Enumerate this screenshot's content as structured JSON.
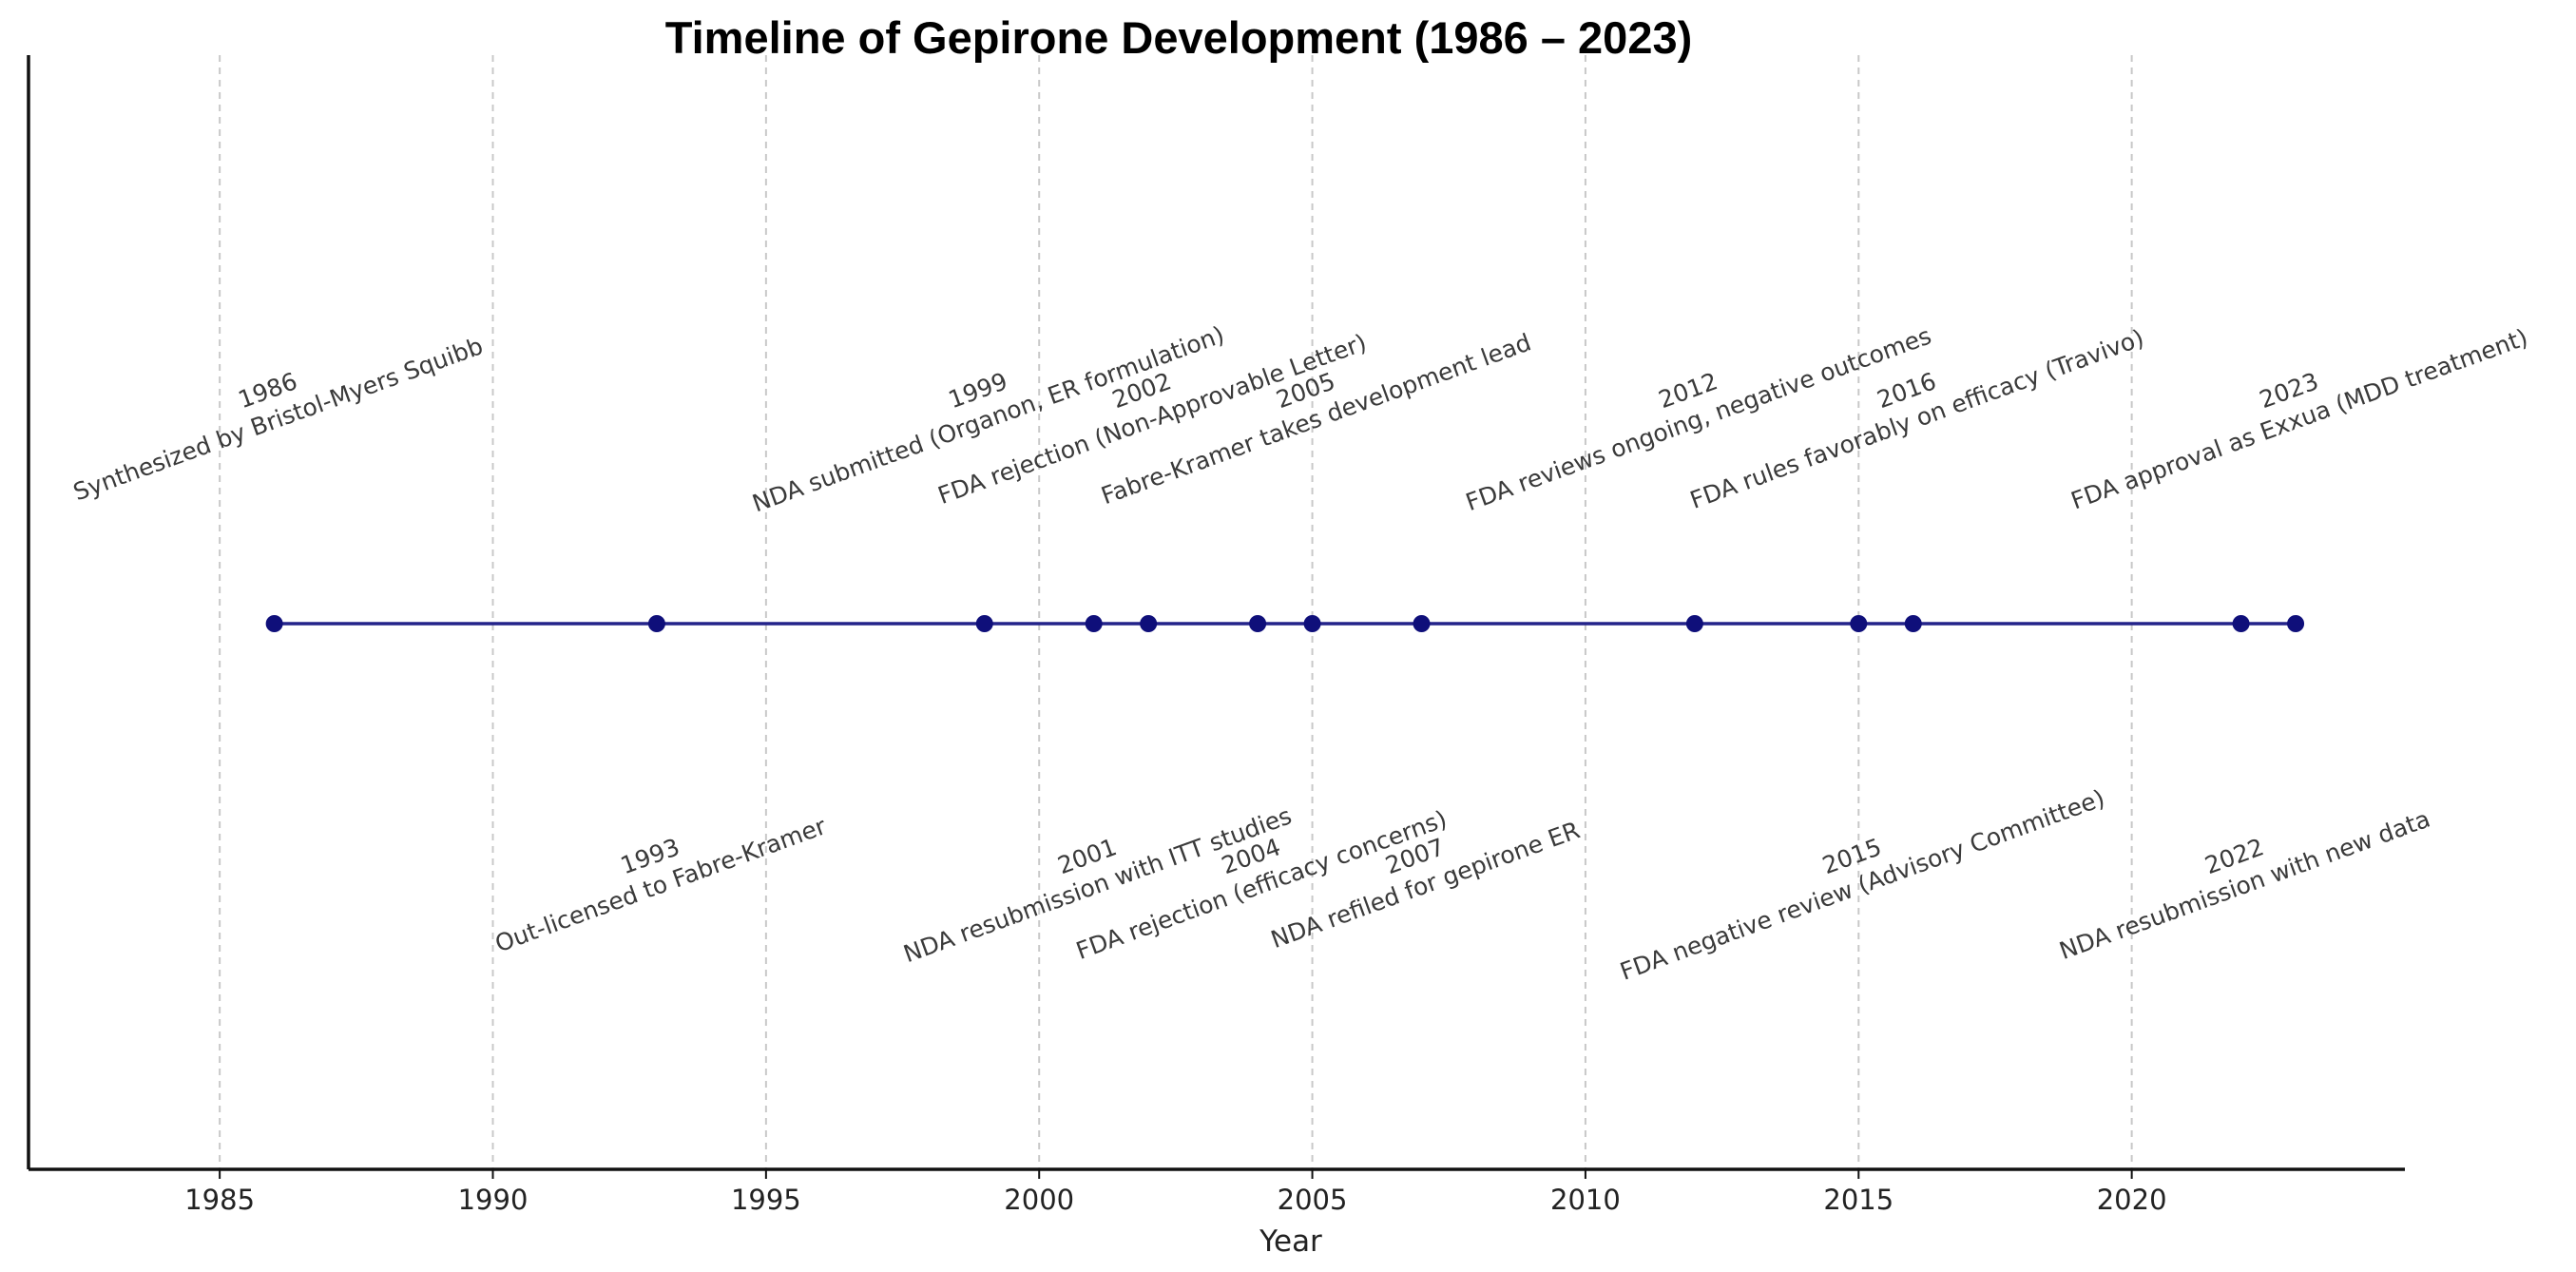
{
  "chart_data": {
    "type": "scatter",
    "title": "Timeline of Gepirone Development (1986 – 2023)",
    "xlabel": "Year",
    "ylabel": "",
    "xlim": [
      1981.5,
      2025
    ],
    "xticks": [
      "1985",
      "1990",
      "1995",
      "2000",
      "2005",
      "2010",
      "2015",
      "2020"
    ],
    "grid": "vertical dashed",
    "line_color": "#23238a",
    "marker_color": "#0f0f7a",
    "events": [
      {
        "year": 1986,
        "label": "Synthesized by Bristol-Myers Squibb",
        "side": "above"
      },
      {
        "year": 1993,
        "label": "Out-licensed to Fabre-Kramer",
        "side": "below"
      },
      {
        "year": 1999,
        "label": "NDA submitted (Organon, ER formulation)",
        "side": "above"
      },
      {
        "year": 2001,
        "label": "NDA resubmission with ITT studies",
        "side": "below"
      },
      {
        "year": 2002,
        "label": "FDA rejection (Non-Approvable Letter)",
        "side": "above"
      },
      {
        "year": 2004,
        "label": "FDA rejection (efficacy concerns)",
        "side": "below"
      },
      {
        "year": 2005,
        "label": "Fabre-Kramer takes development lead",
        "side": "above"
      },
      {
        "year": 2007,
        "label": "NDA refiled for gepirone ER",
        "side": "below"
      },
      {
        "year": 2012,
        "label": "FDA reviews ongoing, negative outcomes",
        "side": "above"
      },
      {
        "year": 2015,
        "label": "FDA negative review (Advisory Committee)",
        "side": "below"
      },
      {
        "year": 2016,
        "label": "FDA rules favorably on efficacy (Travivo)",
        "side": "above"
      },
      {
        "year": 2022,
        "label": "NDA resubmission with new data",
        "side": "below"
      },
      {
        "year": 2023,
        "label": "FDA approval as Exxua (MDD treatment)",
        "side": "above"
      }
    ]
  }
}
